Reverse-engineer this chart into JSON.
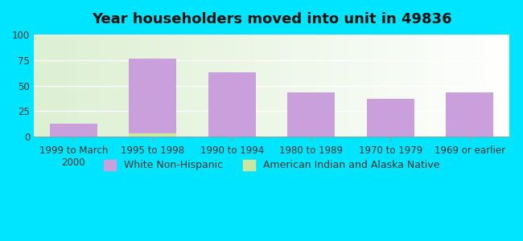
{
  "title": "Year householders moved into unit in 49836",
  "categories": [
    "1999 to March\n2000",
    "1995 to 1998",
    "1990 to 1994",
    "1980 to 1989",
    "1970 to 1979",
    "1969 or earlier"
  ],
  "white_non_hispanic": [
    13,
    76,
    63,
    43,
    37,
    43
  ],
  "american_indian": [
    0,
    3,
    0,
    0,
    0,
    0
  ],
  "bar_color_white": "#c9a0dc",
  "bar_color_indian": "#cce8a0",
  "background_outer": "#00e5ff",
  "ylim": [
    0,
    100
  ],
  "yticks": [
    0,
    25,
    50,
    75,
    100
  ],
  "legend_white": "White Non-Hispanic",
  "legend_indian": "American Indian and Alaska Native",
  "title_fontsize": 13,
  "tick_fontsize": 8.5,
  "legend_fontsize": 9
}
